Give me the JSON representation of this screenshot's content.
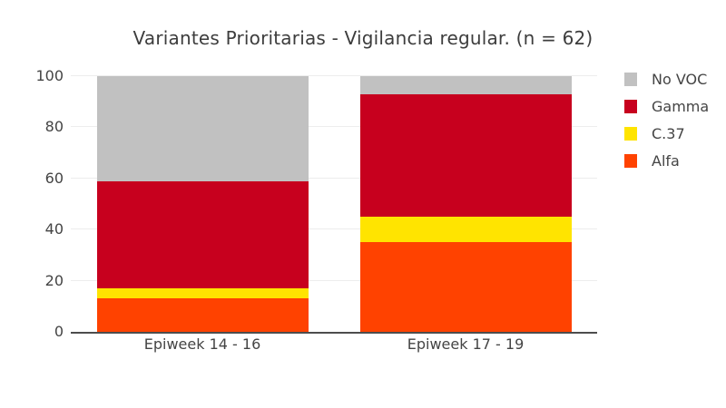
{
  "chart_data": {
    "type": "bar",
    "stacked": true,
    "title": "Variantes Prioritarias - Vigilancia regular. (n = 62)",
    "categories": [
      "Epiweek 14 - 16",
      "Epiweek 17 - 19"
    ],
    "series": [
      {
        "name": "Alfa",
        "color": "#ff4200",
        "values": [
          13,
          35
        ]
      },
      {
        "name": "C.37",
        "color": "#ffe400",
        "values": [
          4,
          10
        ]
      },
      {
        "name": "Gamma",
        "color": "#c7001e",
        "values": [
          42,
          48
        ]
      },
      {
        "name": "No VOC",
        "color": "#c1c1c1",
        "values": [
          41,
          7
        ]
      }
    ],
    "legend": {
      "position": "right",
      "order": [
        "No VOC",
        "Gamma",
        "C.37",
        "Alfa"
      ]
    },
    "yticks": [
      0,
      20,
      40,
      60,
      80,
      100
    ],
    "ylim": [
      0,
      100
    ],
    "grid": true
  },
  "style": {
    "background": "#ffffff",
    "axis_line_color": "#4d4d4d",
    "grid_color": "#ededed",
    "tick_text_color": "#444444",
    "title_color": "#3d3d3d"
  }
}
